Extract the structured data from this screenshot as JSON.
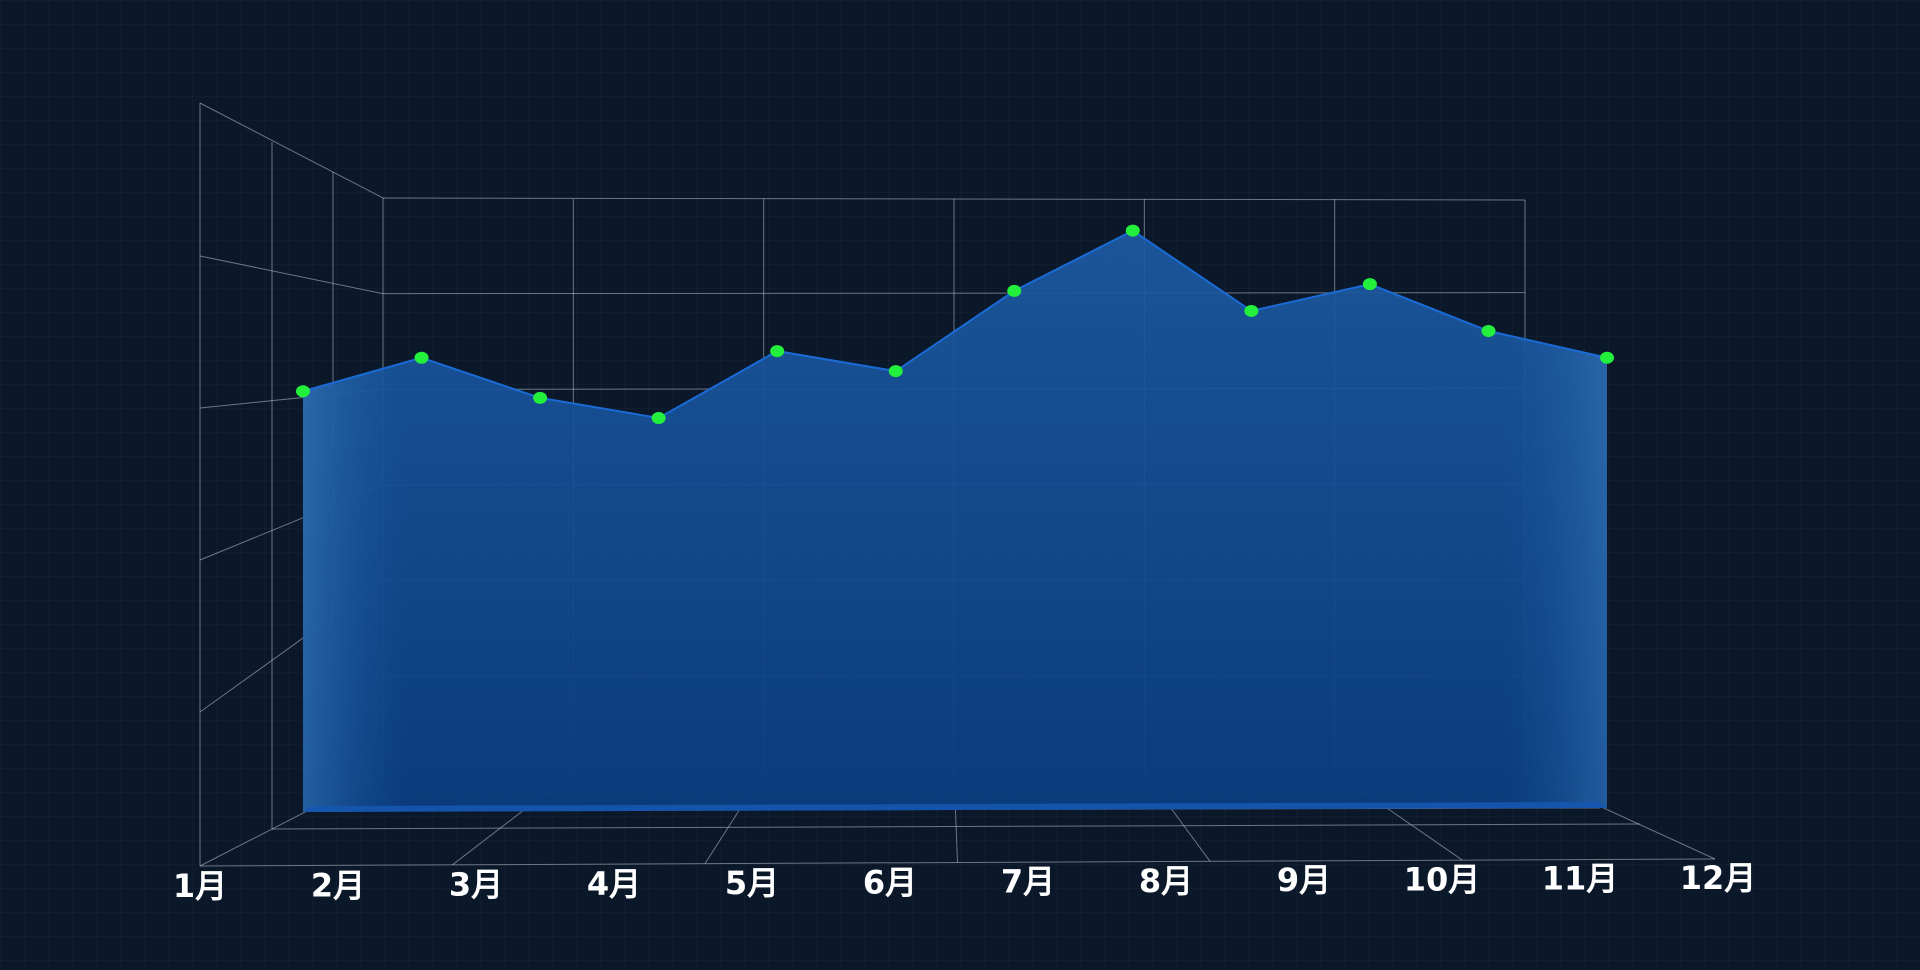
{
  "chart_data": {
    "type": "area",
    "style": "3d-perspective",
    "categories": [
      "1月",
      "2月",
      "3月",
      "4月",
      "5月",
      "6月",
      "7月",
      "8月",
      "9月",
      "10月",
      "11月",
      "12月"
    ],
    "series": [
      {
        "values": [
          62,
          67,
          61,
          58,
          68,
          65,
          77,
          86,
          74,
          78,
          71,
          67
        ]
      }
    ],
    "title": "",
    "xlabel": "",
    "ylabel": "",
    "ylim": [
      0,
      100
    ],
    "grid": true,
    "legend": "none",
    "colors": {
      "background": "#0b1829",
      "area_top": "#1f5fa8",
      "area_bottom": "#0a3a7a",
      "line": "#1a6bd6",
      "points": "#22f03c",
      "grid": "#b9c4d2",
      "labels": "#ffffff"
    }
  }
}
